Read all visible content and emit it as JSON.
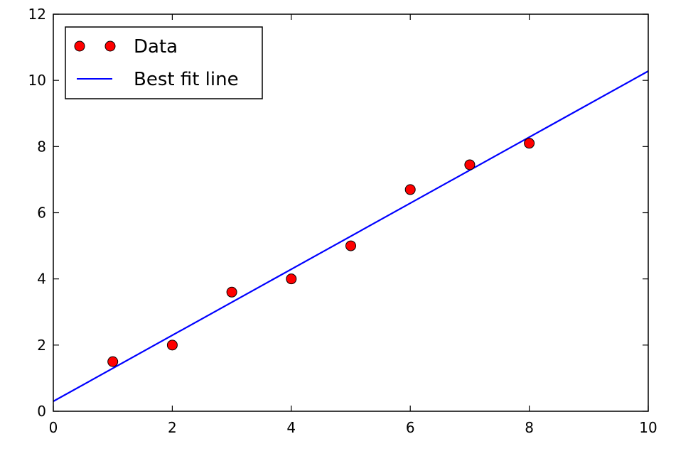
{
  "chart_data": {
    "type": "scatter",
    "title": "",
    "xlabel": "",
    "ylabel": "",
    "xlim": [
      0,
      10
    ],
    "ylim": [
      0,
      12
    ],
    "x_ticks": [
      0,
      2,
      4,
      6,
      8,
      10
    ],
    "y_ticks": [
      0,
      2,
      4,
      6,
      8,
      10,
      12
    ],
    "x_tick_labels": [
      "0",
      "2",
      "4",
      "6",
      "8",
      "10"
    ],
    "y_tick_labels": [
      "0",
      "2",
      "4",
      "6",
      "8",
      "10",
      "12"
    ],
    "grid": false,
    "legend_position": "top-left",
    "series": [
      {
        "name": "Data",
        "type": "scatter",
        "color": "#ff0000",
        "edge_color": "#000000",
        "x": [
          1,
          2,
          3,
          4,
          5,
          6,
          7,
          8
        ],
        "y": [
          1.5,
          2.0,
          3.6,
          4.0,
          5.0,
          6.7,
          7.45,
          8.1
        ]
      },
      {
        "name": "Best fit line",
        "type": "line",
        "color": "#0000ff",
        "x": [
          0,
          10
        ],
        "y": [
          0.3,
          10.28
        ]
      }
    ]
  }
}
